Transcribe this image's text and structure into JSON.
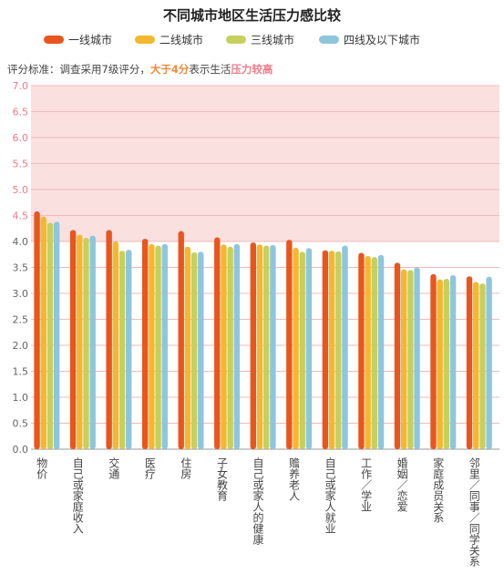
{
  "title": "不同城市地区生活压力感比较",
  "note": {
    "prefix": "评分标准：调查采用7级评分，",
    "highlight1": "大于4分",
    "middle": "表示生活",
    "highlight2": "压力较高"
  },
  "colors": {
    "tier1": "#e8561e",
    "tier2": "#f5b72d",
    "tier3": "#c7cf5d",
    "tier4": "#8ec6dc",
    "high_zone": "#fbe0e0",
    "grid": "#f2b9b9"
  },
  "chart_data": {
    "type": "bar",
    "title": "不同城市地区生活压力感比较",
    "legend_position": "top",
    "ylim": [
      0,
      7
    ],
    "yticks": [
      "0.0",
      "0.5",
      "1.0",
      "1.5",
      "2.0",
      "2.5",
      "3.0",
      "3.5",
      "4.0",
      "4.5",
      "5.0",
      "5.5",
      "6.0",
      "6.5",
      "7.0"
    ],
    "high_threshold": 4.0,
    "categories": [
      "物价",
      "自己或家庭收入",
      "交通",
      "医疗",
      "住房",
      "子女教育",
      "自己或家人的健康",
      "赡养老人",
      "自己或家人就业",
      "工作/学业",
      "婚姻/恋爱",
      "家庭成员关系",
      "邻里/同事/同学关系"
    ],
    "category_labels": [
      "物价",
      "自己或家庭收入",
      "交通",
      "医疗",
      "住房",
      "子女教育",
      "自己或家人的健康",
      "赡养老人",
      "自己或家人就业",
      "工作／学业",
      "婚姻／恋爱",
      "家庭成员关系",
      "邻里／同事／同学关系"
    ],
    "series": [
      {
        "name": "一线城市",
        "color": "#e8561e",
        "values": [
          4.58,
          4.22,
          4.22,
          4.05,
          4.2,
          4.08,
          3.98,
          4.03,
          3.83,
          3.78,
          3.59,
          3.37,
          3.33
        ]
      },
      {
        "name": "二线城市",
        "color": "#f5b72d",
        "values": [
          4.48,
          4.13,
          4.0,
          3.95,
          3.9,
          3.94,
          3.94,
          3.88,
          3.82,
          3.72,
          3.46,
          3.27,
          3.22
        ]
      },
      {
        "name": "三线城市",
        "color": "#c7cf5d",
        "values": [
          4.36,
          4.07,
          3.82,
          3.92,
          3.79,
          3.9,
          3.92,
          3.8,
          3.81,
          3.7,
          3.45,
          3.28,
          3.19
        ]
      },
      {
        "name": "四线及以下城市",
        "color": "#8ec6dc",
        "values": [
          4.38,
          4.11,
          3.84,
          3.95,
          3.8,
          3.95,
          3.93,
          3.87,
          3.92,
          3.74,
          3.5,
          3.35,
          3.32
        ]
      }
    ]
  }
}
